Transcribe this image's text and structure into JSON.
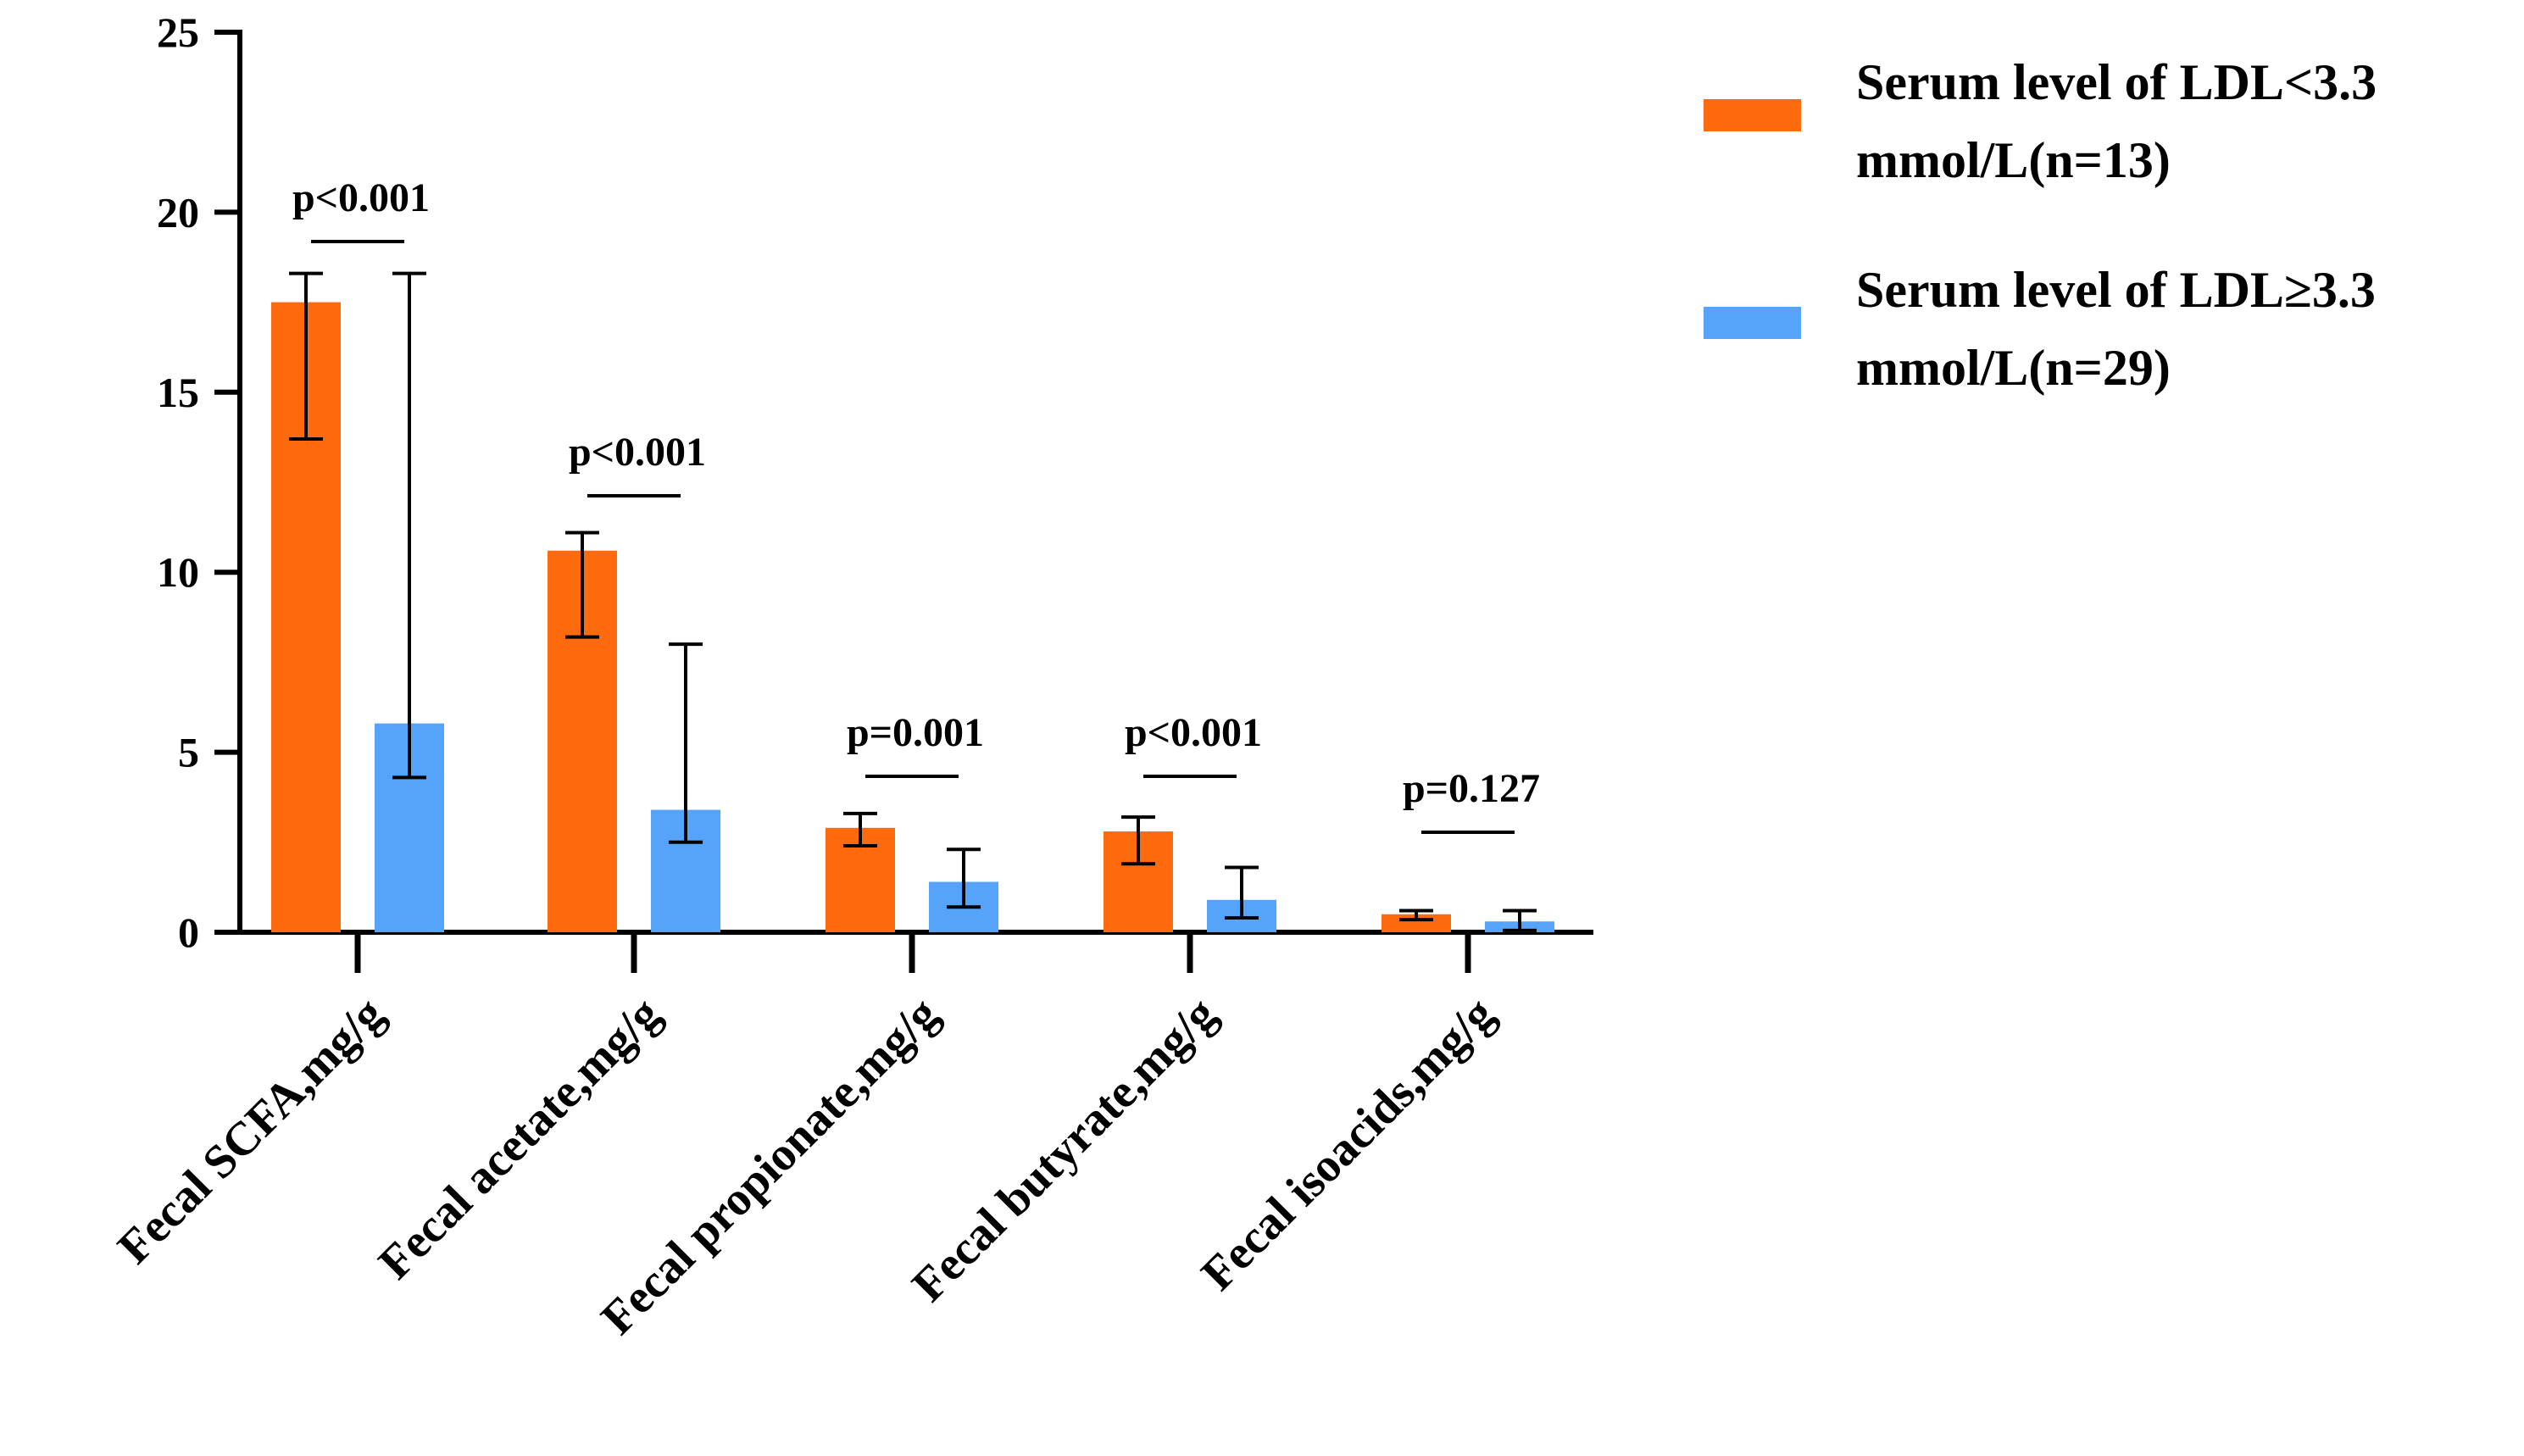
{
  "chart_data": {
    "type": "bar",
    "title": "",
    "xlabel": "",
    "ylabel": "",
    "ylim": [
      0,
      25
    ],
    "yticks": [
      0,
      5,
      10,
      15,
      20,
      25
    ],
    "categories": [
      "Fecal SCFA,mg/g",
      "Fecal acetate,mg/g",
      "Fecal propionate,mg/g",
      "Fecal butyrate,mg/g",
      "Fecal isoacids,mg/g"
    ],
    "series": [
      {
        "name": "Serum level of LDL<3.3 mmol/L(n=13)",
        "legend_lines": [
          "Serum level of LDL<3.3",
          "mmol/L(n=13)"
        ],
        "color": "#FF6A0E",
        "values": [
          17.5,
          10.6,
          2.9,
          2.8,
          0.5
        ],
        "err_low": [
          13.7,
          8.2,
          2.4,
          1.9,
          0.35
        ],
        "err_high": [
          18.3,
          11.1,
          3.3,
          3.2,
          0.6
        ]
      },
      {
        "name": "Serum level of LDL≥3.3 mmol/L(n=29)",
        "legend_lines": [
          "Serum level of LDL≥3.3",
          "mmol/L(n=29)"
        ],
        "color": "#55A4FA",
        "values": [
          5.8,
          3.4,
          1.4,
          0.9,
          0.3
        ],
        "err_low": [
          4.3,
          2.5,
          0.7,
          0.4,
          0.05
        ],
        "err_high": [
          18.3,
          8.0,
          2.3,
          1.8,
          0.6
        ]
      }
    ],
    "p_values": [
      "p<0.001",
      "p<0.001",
      "p=0.001",
      "p<0.001",
      "p=0.127"
    ],
    "legend_position": "top-right",
    "grid": false
  }
}
